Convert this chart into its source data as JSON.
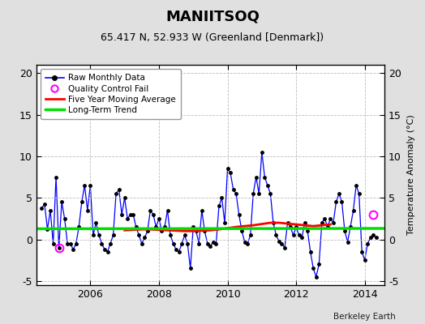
{
  "title": "MANIITSOQ",
  "subtitle": "65.417 N, 52.933 W (Greenland [Denmark])",
  "ylabel": "Temperature Anomaly (°C)",
  "credit": "Berkeley Earth",
  "ylim": [
    -5.5,
    21.0
  ],
  "yticks": [
    -5,
    0,
    5,
    10,
    15,
    20
  ],
  "xlim": [
    2004.42,
    2014.58
  ],
  "xticks": [
    2006,
    2008,
    2010,
    2012,
    2014
  ],
  "bg_color": "#e0e0e0",
  "plot_bg_color": "#ffffff",
  "raw_color": "#0000ff",
  "marker_color": "#000000",
  "ma_color": "#ff0000",
  "trend_color": "#00dd00",
  "qc_color": "#ff00ff",
  "trend_intercept": 1.3,
  "trend_slope": 0.004,
  "trend_x0": 2009.5,
  "legend_labels": [
    "Raw Monthly Data",
    "Quality Control Fail",
    "Five Year Moving Average",
    "Long-Term Trend"
  ],
  "raw_data": [
    [
      2004.583,
      3.8
    ],
    [
      2004.667,
      4.2
    ],
    [
      2004.75,
      1.2
    ],
    [
      2004.833,
      3.5
    ],
    [
      2004.917,
      -0.5
    ],
    [
      2005.0,
      7.5
    ],
    [
      2005.083,
      -1.0
    ],
    [
      2005.167,
      4.5
    ],
    [
      2005.25,
      2.5
    ],
    [
      2005.333,
      -0.5
    ],
    [
      2005.417,
      -0.5
    ],
    [
      2005.5,
      -1.2
    ],
    [
      2005.583,
      -0.5
    ],
    [
      2005.667,
      1.5
    ],
    [
      2005.75,
      4.5
    ],
    [
      2005.833,
      6.5
    ],
    [
      2005.917,
      3.5
    ],
    [
      2006.0,
      6.5
    ],
    [
      2006.083,
      0.5
    ],
    [
      2006.167,
      2.0
    ],
    [
      2006.25,
      0.5
    ],
    [
      2006.333,
      -0.5
    ],
    [
      2006.417,
      -1.2
    ],
    [
      2006.5,
      -1.5
    ],
    [
      2006.583,
      -0.5
    ],
    [
      2006.667,
      0.5
    ],
    [
      2006.75,
      5.5
    ],
    [
      2006.833,
      6.0
    ],
    [
      2006.917,
      3.0
    ],
    [
      2007.0,
      5.0
    ],
    [
      2007.083,
      2.5
    ],
    [
      2007.167,
      3.0
    ],
    [
      2007.25,
      3.0
    ],
    [
      2007.333,
      1.5
    ],
    [
      2007.417,
      0.5
    ],
    [
      2007.5,
      -0.5
    ],
    [
      2007.583,
      0.2
    ],
    [
      2007.667,
      1.0
    ],
    [
      2007.75,
      3.5
    ],
    [
      2007.833,
      3.0
    ],
    [
      2007.917,
      1.5
    ],
    [
      2008.0,
      2.5
    ],
    [
      2008.083,
      1.0
    ],
    [
      2008.167,
      1.5
    ],
    [
      2008.25,
      3.5
    ],
    [
      2008.333,
      0.5
    ],
    [
      2008.417,
      -0.5
    ],
    [
      2008.5,
      -1.2
    ],
    [
      2008.583,
      -1.5
    ],
    [
      2008.667,
      -0.5
    ],
    [
      2008.75,
      0.5
    ],
    [
      2008.833,
      -0.5
    ],
    [
      2008.917,
      -3.5
    ],
    [
      2009.0,
      1.5
    ],
    [
      2009.083,
      1.0
    ],
    [
      2009.167,
      -0.5
    ],
    [
      2009.25,
      3.5
    ],
    [
      2009.333,
      1.0
    ],
    [
      2009.417,
      -0.5
    ],
    [
      2009.5,
      -0.8
    ],
    [
      2009.583,
      -0.3
    ],
    [
      2009.667,
      -0.5
    ],
    [
      2009.75,
      4.0
    ],
    [
      2009.833,
      5.0
    ],
    [
      2009.917,
      2.0
    ],
    [
      2010.0,
      8.5
    ],
    [
      2010.083,
      8.0
    ],
    [
      2010.167,
      6.0
    ],
    [
      2010.25,
      5.5
    ],
    [
      2010.333,
      3.0
    ],
    [
      2010.417,
      1.0
    ],
    [
      2010.5,
      -0.3
    ],
    [
      2010.583,
      -0.5
    ],
    [
      2010.667,
      0.5
    ],
    [
      2010.75,
      5.5
    ],
    [
      2010.833,
      7.5
    ],
    [
      2010.917,
      5.5
    ],
    [
      2011.0,
      10.5
    ],
    [
      2011.083,
      7.5
    ],
    [
      2011.167,
      6.5
    ],
    [
      2011.25,
      5.5
    ],
    [
      2011.333,
      2.0
    ],
    [
      2011.417,
      0.5
    ],
    [
      2011.5,
      -0.2
    ],
    [
      2011.583,
      -0.5
    ],
    [
      2011.667,
      -1.0
    ],
    [
      2011.75,
      2.0
    ],
    [
      2011.833,
      1.5
    ],
    [
      2011.917,
      0.5
    ],
    [
      2012.0,
      1.5
    ],
    [
      2012.083,
      0.5
    ],
    [
      2012.167,
      0.2
    ],
    [
      2012.25,
      2.0
    ],
    [
      2012.333,
      1.0
    ],
    [
      2012.417,
      -1.5
    ],
    [
      2012.5,
      -3.5
    ],
    [
      2012.583,
      -4.5
    ],
    [
      2012.667,
      -3.0
    ],
    [
      2012.75,
      2.0
    ],
    [
      2012.833,
      2.5
    ],
    [
      2012.917,
      1.5
    ],
    [
      2013.0,
      2.5
    ],
    [
      2013.083,
      2.0
    ],
    [
      2013.167,
      4.5
    ],
    [
      2013.25,
      5.5
    ],
    [
      2013.333,
      4.5
    ],
    [
      2013.417,
      1.0
    ],
    [
      2013.5,
      -0.3
    ],
    [
      2013.583,
      1.5
    ],
    [
      2013.667,
      3.5
    ],
    [
      2013.75,
      6.5
    ],
    [
      2013.833,
      5.5
    ],
    [
      2013.917,
      -1.5
    ],
    [
      2014.0,
      -2.5
    ],
    [
      2014.083,
      -0.5
    ],
    [
      2014.167,
      0.2
    ],
    [
      2014.25,
      0.5
    ],
    [
      2014.333,
      0.2
    ]
  ],
  "qc_fail_points": [
    [
      2005.083,
      -1.0
    ],
    [
      2014.25,
      3.0
    ]
  ],
  "ma_data": [
    [
      2007.0,
      1.1
    ],
    [
      2007.25,
      1.15
    ],
    [
      2007.5,
      1.2
    ],
    [
      2007.75,
      1.2
    ],
    [
      2008.0,
      1.15
    ],
    [
      2008.25,
      1.1
    ],
    [
      2008.5,
      1.05
    ],
    [
      2008.75,
      1.0
    ],
    [
      2009.0,
      1.0
    ],
    [
      2009.25,
      1.05
    ],
    [
      2009.5,
      1.1
    ],
    [
      2009.75,
      1.2
    ],
    [
      2010.0,
      1.35
    ],
    [
      2010.25,
      1.5
    ],
    [
      2010.5,
      1.6
    ],
    [
      2010.75,
      1.7
    ],
    [
      2011.0,
      1.85
    ],
    [
      2011.25,
      2.0
    ],
    [
      2011.5,
      2.0
    ],
    [
      2011.75,
      1.9
    ],
    [
      2012.0,
      1.8
    ],
    [
      2012.25,
      1.7
    ],
    [
      2012.5,
      1.6
    ],
    [
      2012.75,
      1.7
    ],
    [
      2013.0,
      1.8
    ]
  ]
}
